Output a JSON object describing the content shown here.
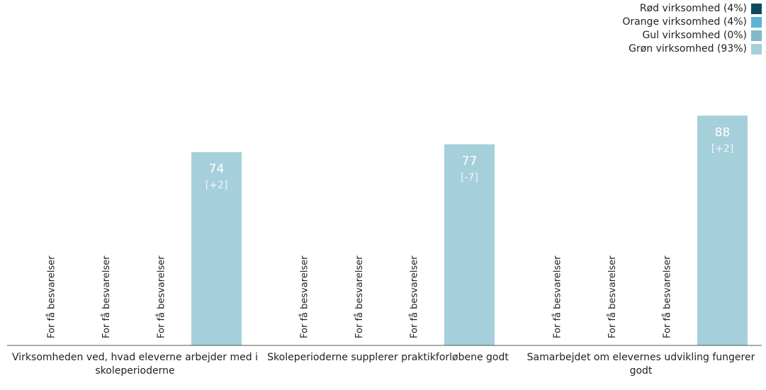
{
  "chart_data": {
    "type": "bar",
    "categories": [
      "Virksomheden ved, hvad eleverne arbejder med i skoleperioderne",
      "Skoleperioderne supplerer praktikforløbene godt",
      "Samarbejdet om elevernes udvikling fungerer godt"
    ],
    "series": [
      {
        "name": "Rød virksomhed (4%)",
        "color": "#0b4a5e",
        "values": [
          null,
          null,
          null
        ],
        "value_labels": [
          "For få besvarelser",
          "For få besvarelser",
          "For få besvarelser"
        ]
      },
      {
        "name": "Orange virksomhed (4%)",
        "color": "#5ab4d6",
        "values": [
          null,
          null,
          null
        ],
        "value_labels": [
          "For få besvarelser",
          "For få besvarelser",
          "For få besvarelser"
        ]
      },
      {
        "name": "Gul virksomhed (0%)",
        "color": "#80b9c9",
        "values": [
          null,
          null,
          null
        ],
        "value_labels": [
          "For få besvarelser",
          "For få besvarelser",
          "For få besvarelser"
        ]
      },
      {
        "name": "Grøn virksomhed (93%)",
        "color": "#a6cfdc",
        "values": [
          74,
          77,
          88
        ],
        "changes": [
          "[+2]",
          "[-7]",
          "[+2]"
        ]
      }
    ],
    "ylim": [
      0,
      100
    ],
    "legend": "top-right"
  }
}
